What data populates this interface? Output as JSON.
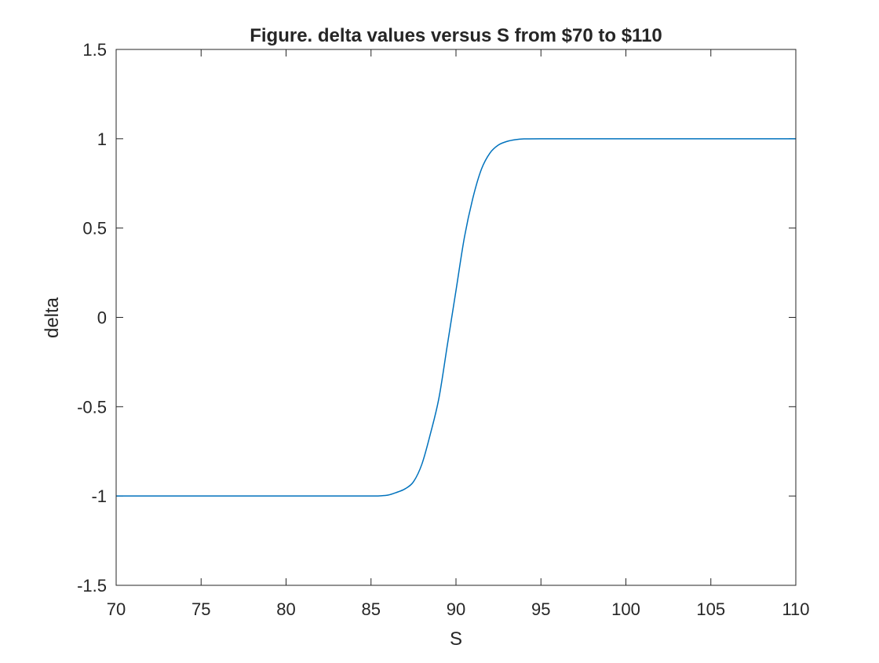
{
  "chart_data": {
    "type": "line",
    "title": "Figure. delta values versus S from $70 to $110",
    "xlabel": "S",
    "ylabel": "delta",
    "xlim": [
      70,
      110
    ],
    "ylim": [
      -1.5,
      1.5
    ],
    "xticks": [
      70,
      75,
      80,
      85,
      90,
      95,
      100,
      105,
      110
    ],
    "yticks": [
      -1.5,
      -1,
      -0.5,
      0,
      0.5,
      1,
      1.5
    ],
    "xtick_labels": [
      "70",
      "75",
      "80",
      "85",
      "90",
      "95",
      "100",
      "105",
      "110"
    ],
    "ytick_labels": [
      "-1.5",
      "-1",
      "-0.5",
      "0",
      "0.5",
      "1",
      "1.5"
    ],
    "grid": false,
    "legend": "none",
    "series": [
      {
        "color": "#0072BD",
        "x": [
          70,
          75,
          80,
          84,
          85,
          85.5,
          86,
          86.5,
          87,
          87.5,
          88,
          88.5,
          89,
          89.5,
          90,
          90.5,
          91,
          91.5,
          92,
          92.5,
          93,
          93.5,
          94,
          95,
          100,
          105,
          110
        ],
        "y": [
          -1,
          -1,
          -1,
          -1,
          -1,
          -0.999,
          -0.995,
          -0.98,
          -0.96,
          -0.92,
          -0.82,
          -0.65,
          -0.45,
          -0.15,
          0.15,
          0.45,
          0.67,
          0.83,
          0.92,
          0.965,
          0.985,
          0.995,
          0.999,
          1,
          1,
          1,
          1
        ]
      }
    ]
  }
}
